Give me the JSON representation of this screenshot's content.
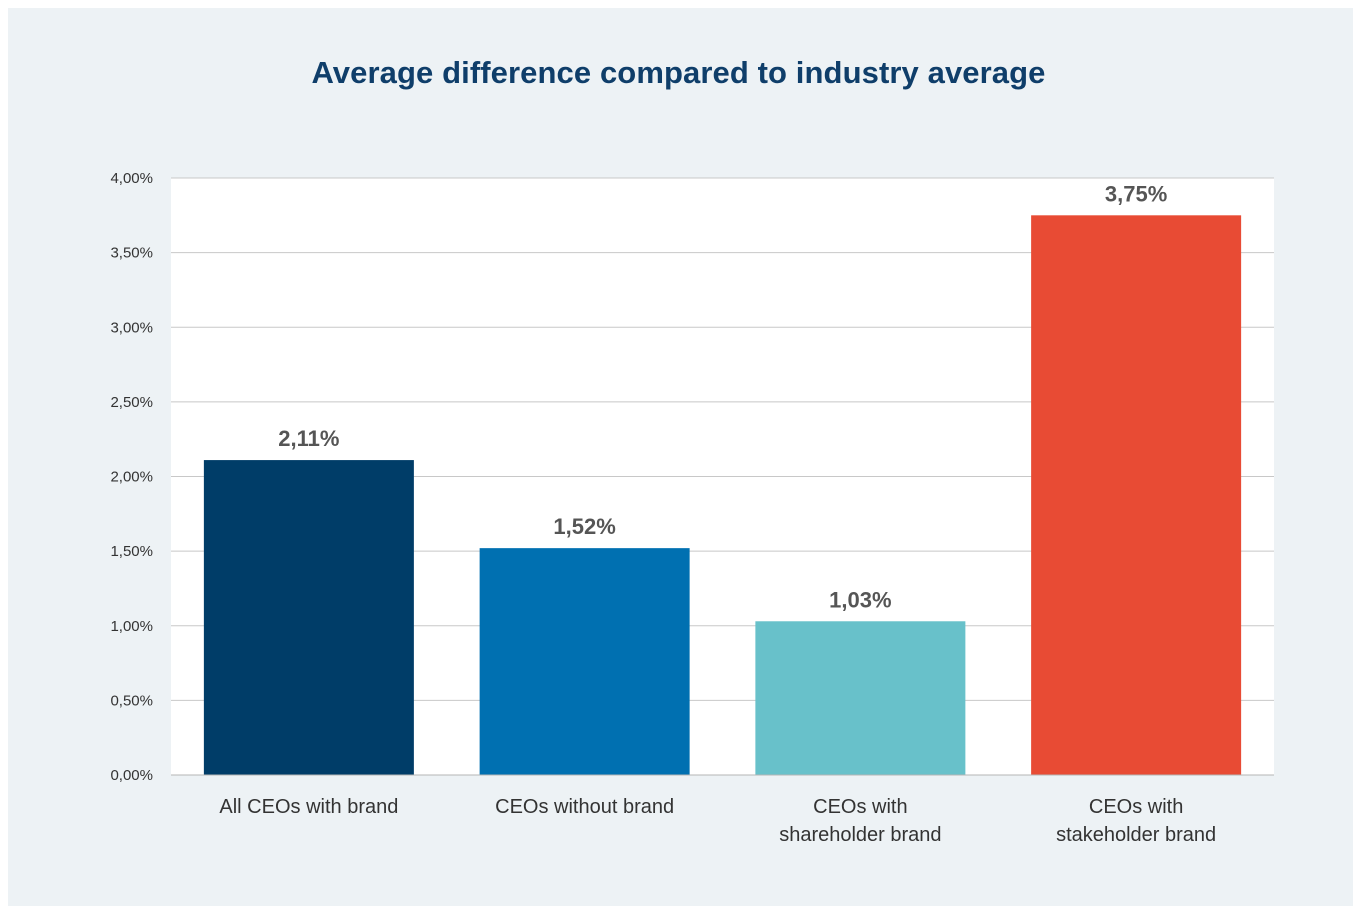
{
  "chart_data": {
    "type": "bar",
    "title": "Average difference compared to industry average",
    "xlabel": "",
    "ylabel": "",
    "ylim": [
      0,
      4
    ],
    "y_ticks": [
      0,
      0.5,
      1,
      1.5,
      2,
      2.5,
      3,
      3.5,
      4
    ],
    "y_tick_labels": [
      "0,00%",
      "0,50%",
      "1,00%",
      "1,50%",
      "2,00%",
      "2,50%",
      "3,00%",
      "3,50%",
      "4,00%"
    ],
    "grid": true,
    "categories": [
      [
        "All CEOs with brand"
      ],
      [
        "CEOs without brand"
      ],
      [
        "CEOs with",
        "shareholder brand"
      ],
      [
        "CEOs with",
        "stakeholder brand"
      ]
    ],
    "values": [
      2.11,
      1.52,
      1.03,
      3.75
    ],
    "data_labels": [
      "2,11%",
      "1,52%",
      "1,03%",
      "3,75%"
    ],
    "colors": [
      "#003d68",
      "#0070b1",
      "#68c1ca",
      "#e84b34"
    ],
    "gridline_color": "#c8c8c8",
    "plot_background": "#ffffff"
  }
}
